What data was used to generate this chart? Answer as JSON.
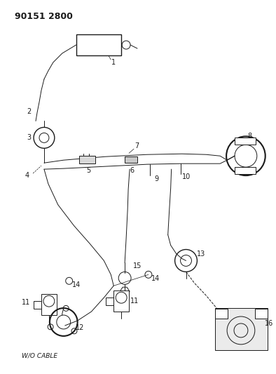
{
  "title": "90151 2800",
  "bg": "#ffffff",
  "lc": "#1a1a1a",
  "fig_w": 3.94,
  "fig_h": 5.33,
  "dpi": 100
}
